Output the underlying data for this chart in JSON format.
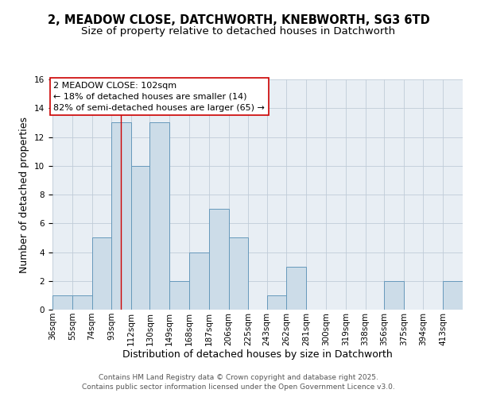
{
  "title1": "2, MEADOW CLOSE, DATCHWORTH, KNEBWORTH, SG3 6TD",
  "title2": "Size of property relative to detached houses in Datchworth",
  "xlabel": "Distribution of detached houses by size in Datchworth",
  "ylabel": "Number of detached properties",
  "bin_edges": [
    36,
    55,
    74,
    93,
    112,
    130,
    149,
    168,
    187,
    206,
    225,
    243,
    262,
    281,
    300,
    319,
    338,
    356,
    375,
    394,
    413
  ],
  "bar_heights": [
    1,
    1,
    5,
    13,
    10,
    13,
    2,
    4,
    7,
    5,
    0,
    1,
    3,
    0,
    0,
    0,
    0,
    2,
    0,
    0,
    2
  ],
  "bar_color": "#ccdce8",
  "bar_edgecolor": "#6699bb",
  "ylim": [
    0,
    16
  ],
  "yticks": [
    0,
    2,
    4,
    6,
    8,
    10,
    12,
    14,
    16
  ],
  "red_line_x": 102,
  "annotation_line1": "2 MEADOW CLOSE: 102sqm",
  "annotation_line2": "← 18% of detached houses are smaller (14)",
  "annotation_line3": "82% of semi-detached houses are larger (65) →",
  "footer_text": "Contains HM Land Registry data © Crown copyright and database right 2025.\nContains public sector information licensed under the Open Government Licence v3.0.",
  "bg_color": "#e8eef4",
  "grid_color": "#c0ccd8",
  "title_fontsize": 10.5,
  "subtitle_fontsize": 9.5,
  "ylabel_fontsize": 9,
  "xlabel_fontsize": 9,
  "tick_fontsize": 7.5,
  "ann_fontsize": 8,
  "footer_fontsize": 6.5
}
